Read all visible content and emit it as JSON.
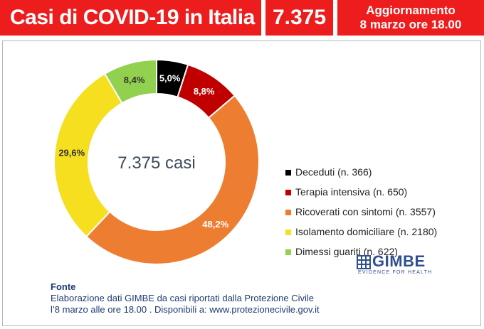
{
  "header": {
    "title": "Casi di COVID-19 in Italia",
    "total": "7.375",
    "update_line1": "Aggiornamento",
    "update_line2": "8 marzo ore 18.00"
  },
  "chart_data": {
    "type": "pie",
    "variant": "donut",
    "center_label": "7.375 casi",
    "legend_position": "right",
    "slices": [
      {
        "name": "Deceduti (n. 366)",
        "value": 366,
        "label": "5,0%",
        "color": "#000000"
      },
      {
        "name": "Terapia intensiva (n. 650)",
        "value": 650,
        "label": "8,8%",
        "color": "#c00000"
      },
      {
        "name": "Ricoverati con sintomi (n. 3557)",
        "value": 3557,
        "label": "48,2%",
        "color": "#ed7d31"
      },
      {
        "name": "Isolamento domiciliare (n. 2180)",
        "value": 2180,
        "label": "29,6%",
        "color": "#f5df1e"
      },
      {
        "name": "Dimessi guariti (n. 622)",
        "value": 622,
        "label": "8,4%",
        "color": "#92d050"
      }
    ]
  },
  "logo": {
    "name": "GIMBE",
    "tagline": "EVIDENCE FOR HEALTH"
  },
  "source": {
    "title": "Fonte",
    "line1": "Elaborazione dati GIMBE da casi riportati dalla Protezione Civile",
    "line2": "l’8 marzo alle ore 18.00 . Disponibili a: www.protezionecivile.gov.it"
  }
}
